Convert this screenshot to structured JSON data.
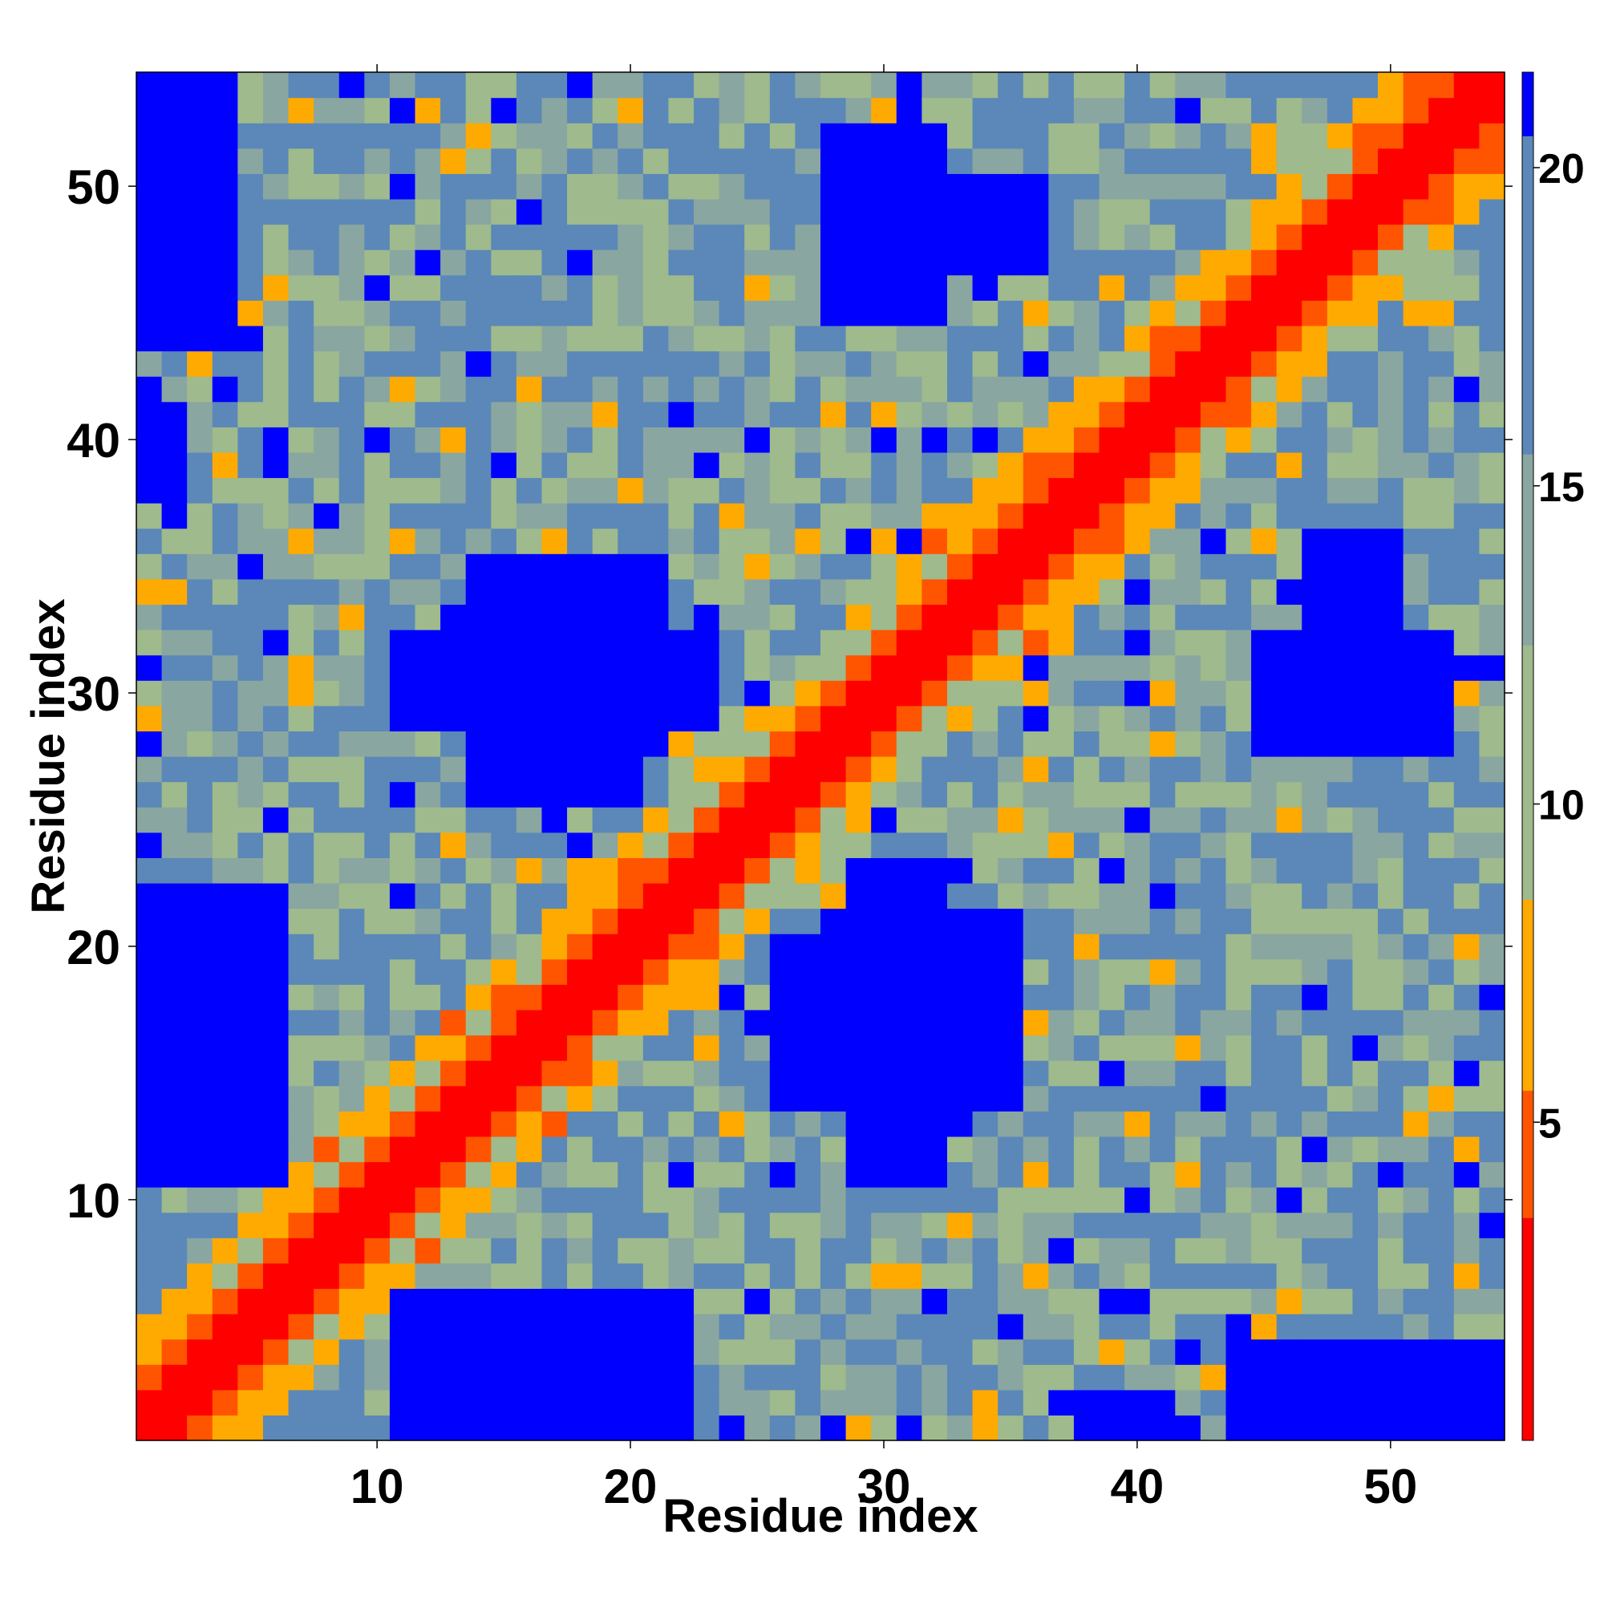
{
  "chart_data": {
    "type": "heatmap",
    "title": "",
    "xlabel": "Residue index",
    "ylabel": "Residue index",
    "n_residues": 54,
    "x_ticks": [
      10,
      20,
      30,
      40,
      50
    ],
    "y_ticks": [
      10,
      20,
      30,
      40,
      50
    ],
    "x_tick_labels": [
      "10",
      "20",
      "30",
      "40",
      "50"
    ],
    "y_tick_labels": [
      "10",
      "20",
      "30",
      "40",
      "50"
    ],
    "colorbar": {
      "ticks": [
        5,
        10,
        15,
        20
      ],
      "tick_labels": [
        "5",
        "10",
        "15",
        "20"
      ],
      "range": [
        0,
        21.5
      ],
      "bands": [
        {
          "min": 0,
          "max": 3.5,
          "color": "#ff0000"
        },
        {
          "min": 3.5,
          "max": 5.5,
          "color": "#ff5500"
        },
        {
          "min": 5.5,
          "max": 8.5,
          "color": "#ffaa00"
        },
        {
          "min": 8.5,
          "max": 12.5,
          "color": "#9fba8c"
        },
        {
          "min": 12.5,
          "max": 15.5,
          "color": "#8aa6a0"
        },
        {
          "min": 15.5,
          "max": 20.5,
          "color": "#5b88b8"
        },
        {
          "min": 20.5,
          "max": 21.5,
          "color": "#0000ff"
        }
      ]
    },
    "grid": false,
    "legend": "colorbar-right",
    "diagonal": "red band of near-zero distances along i = j",
    "blue_regions": [
      {
        "x": [
          1,
          4
        ],
        "y": [
          44,
          54
        ]
      },
      {
        "x": [
          1,
          2
        ],
        "y": [
          38,
          41
        ]
      },
      {
        "x": [
          1,
          5
        ],
        "y": [
          11,
          22
        ]
      },
      {
        "x": [
          11,
          22
        ],
        "y": [
          1,
          6
        ]
      },
      {
        "x": [
          44,
          54
        ],
        "y": [
          1,
          4
        ]
      },
      {
        "x": [
          14,
          20
        ],
        "y": [
          26,
          35
        ]
      },
      {
        "x": [
          11,
          22
        ],
        "y": [
          29,
          32
        ]
      },
      {
        "x": [
          28,
          35
        ],
        "y": [
          15,
          21
        ]
      },
      {
        "x": [
          29,
          32
        ],
        "y": [
          11,
          23
        ]
      },
      {
        "x": [
          28,
          32
        ],
        "y": [
          45,
          52
        ]
      },
      {
        "x": [
          45,
          51
        ],
        "y": [
          28,
          32
        ]
      },
      {
        "x": [
          47,
          50
        ],
        "y": [
          33,
          36
        ]
      }
    ]
  }
}
